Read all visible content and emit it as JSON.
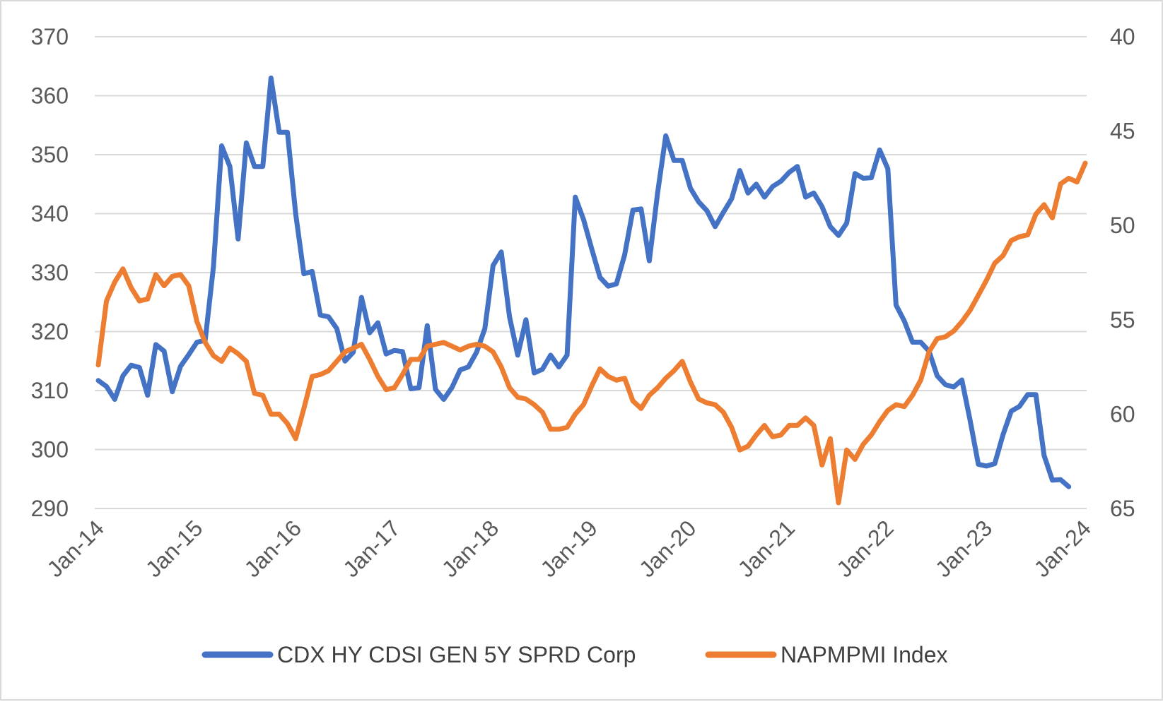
{
  "chart_data": {
    "type": "line",
    "title": "",
    "x_start": "2014-01",
    "x_end": "2024-01",
    "x_ticks": [
      "Jan-14",
      "Jan-15",
      "Jan-16",
      "Jan-17",
      "Jan-18",
      "Jan-19",
      "Jan-20",
      "Jan-21",
      "Jan-22",
      "Jan-23",
      "Jan-24"
    ],
    "y_left": {
      "min": 290,
      "max": 370,
      "step": 10,
      "ticks": [
        "290",
        "300",
        "310",
        "320",
        "330",
        "340",
        "350",
        "360",
        "370"
      ]
    },
    "y_right": {
      "top": 40,
      "bottom": 65,
      "step": 5,
      "inverted": true,
      "ticks": [
        "40",
        "45",
        "50",
        "55",
        "60",
        "65"
      ]
    },
    "gridlines": true,
    "legend_position": "bottom",
    "series": [
      {
        "name": "CDX HY CDSI GEN 5Y SPRD Corp",
        "axis": "left",
        "color": "#4472C4",
        "values": [
          311.7,
          310.7,
          308.5,
          312.5,
          314.3,
          313.9,
          309.2,
          317.8,
          316.7,
          309.8,
          314.1,
          316.1,
          318.2,
          318.5,
          331.0,
          351.5,
          348.0,
          335.7,
          352.0,
          348.0,
          348.0,
          363.0,
          353.8,
          353.8,
          340.0,
          329.8,
          330.2,
          322.8,
          322.5,
          320.5,
          315.0,
          316.5,
          325.8,
          319.8,
          321.5,
          316.2,
          316.8,
          316.6,
          310.3,
          310.5,
          321.0,
          310.2,
          308.5,
          310.5,
          313.5,
          314.0,
          316.5,
          320.5,
          331.2,
          333.5,
          322.5,
          316.0,
          322.0,
          313.0,
          313.6,
          316.0,
          314.0,
          316.0,
          342.8,
          339.0,
          334.0,
          329.2,
          327.7,
          328.1,
          333.0,
          340.6,
          340.8,
          332.0,
          343.5,
          353.2,
          349.0,
          349.0,
          344.3,
          342.0,
          340.5,
          337.8,
          340.2,
          342.5,
          347.3,
          343.5,
          345.0,
          342.8,
          344.6,
          345.5,
          347.0,
          348.0,
          342.8,
          343.5,
          341.2,
          337.8,
          336.3,
          338.4,
          346.8,
          346.0,
          346.1,
          350.8,
          347.6,
          324.5,
          321.8,
          318.2,
          318.2,
          316.7,
          312.5,
          311.0,
          310.6,
          311.8,
          305.0,
          297.5,
          297.2,
          297.6,
          302.5,
          306.5,
          307.3,
          309.3,
          309.3,
          299.0,
          294.8,
          294.9,
          293.7
        ],
        "dates_note": "monthly Jan-14 to ~Nov-23"
      },
      {
        "name": "NAPMPMI Index",
        "axis": "right",
        "color": "#ED7D31",
        "values": [
          57.4,
          54.0,
          53.0,
          52.3,
          53.3,
          54.0,
          53.9,
          52.6,
          53.2,
          52.7,
          52.6,
          53.2,
          55.1,
          56.2,
          56.9,
          57.2,
          56.5,
          56.8,
          57.2,
          58.9,
          59.0,
          60.0,
          60.0,
          60.5,
          61.3,
          59.7,
          58.0,
          57.9,
          57.7,
          57.2,
          56.7,
          56.5,
          56.3,
          57.1,
          58.0,
          58.7,
          58.6,
          57.9,
          57.1,
          57.1,
          56.4,
          56.3,
          56.2,
          56.4,
          56.6,
          56.4,
          56.3,
          56.4,
          56.7,
          57.5,
          58.6,
          59.1,
          59.2,
          59.5,
          59.9,
          60.8,
          60.8,
          60.7,
          60.0,
          59.5,
          58.5,
          57.6,
          58.0,
          58.2,
          58.1,
          59.3,
          59.7,
          59.0,
          58.6,
          58.1,
          57.7,
          57.2,
          58.3,
          59.2,
          59.4,
          59.5,
          59.9,
          60.7,
          61.9,
          61.7,
          61.1,
          60.6,
          61.2,
          61.1,
          60.6,
          60.6,
          60.2,
          60.6,
          62.7,
          61.3,
          64.7,
          61.9,
          62.4,
          61.6,
          61.1,
          60.4,
          59.8,
          59.5,
          59.6,
          59.0,
          58.2,
          56.7,
          56.0,
          55.9,
          55.6,
          55.1,
          54.5,
          53.7,
          52.9,
          52.0,
          51.6,
          50.8,
          50.6,
          50.5,
          49.4,
          48.9,
          49.6,
          47.8,
          47.5,
          47.7,
          46.7
        ]
      }
    ]
  },
  "legend": {
    "items": [
      {
        "label": "CDX HY CDSI GEN 5Y SPRD Corp",
        "color": "#4472C4"
      },
      {
        "label": "NAPMPMI Index",
        "color": "#ED7D31"
      }
    ]
  }
}
